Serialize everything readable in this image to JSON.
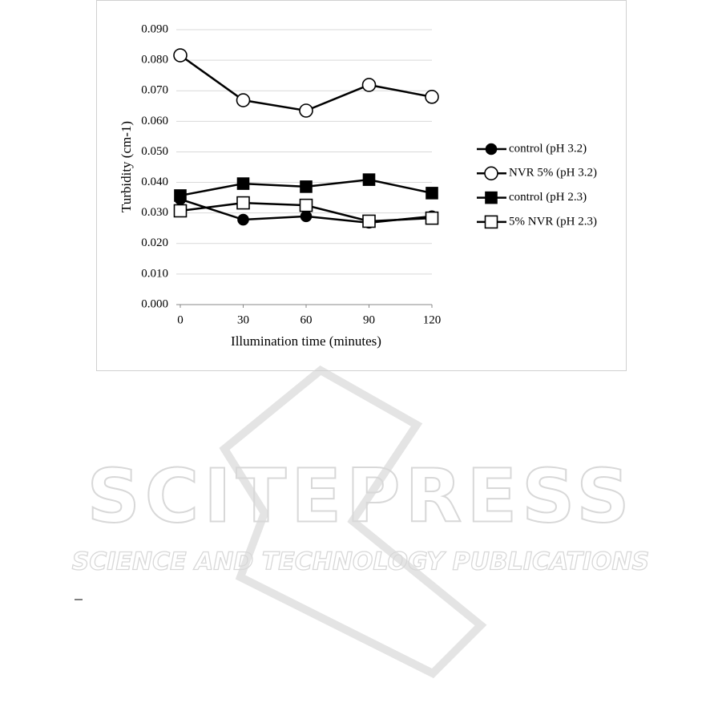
{
  "chart_data": {
    "type": "line",
    "y_label": "Turbidity (cm-1)",
    "x_label": "Illumination time (minutes)",
    "x": [
      0,
      30,
      60,
      90,
      120
    ],
    "xlim": [
      0,
      120
    ],
    "xticks": [
      0,
      30,
      60,
      90,
      120
    ],
    "ylim": [
      0,
      0.09
    ],
    "yticks": [
      {
        "value": 0,
        "label": "0.000"
      },
      {
        "value": 0.01,
        "label": "0.010"
      },
      {
        "value": 0.02,
        "label": "0.020"
      },
      {
        "value": 0.03,
        "label": "0.030"
      },
      {
        "value": 0.04,
        "label": "0.040"
      },
      {
        "value": 0.05,
        "label": "0.050"
      },
      {
        "value": 0.06,
        "label": "0.060"
      },
      {
        "value": 0.07,
        "label": "0.070"
      },
      {
        "value": 0.08,
        "label": "0.080"
      },
      {
        "value": 0.09,
        "label": "0.090"
      }
    ],
    "grid": true,
    "legend": "right",
    "series": [
      {
        "name": "control (pH 3.2)",
        "color": "#000000",
        "marker": "circle",
        "filled": true,
        "values": [
          0.0345,
          0.0278,
          0.0289,
          0.0268,
          0.0289
        ]
      },
      {
        "name": "NVR 5% (pH 3.2)",
        "color": "#000000",
        "marker": "circle",
        "filled": false,
        "values": [
          0.0816,
          0.0669,
          0.0635,
          0.0719,
          0.068
        ]
      },
      {
        "name": "control (pH 2.3)",
        "color": "#000000",
        "marker": "square",
        "filled": true,
        "values": [
          0.0357,
          0.0396,
          0.0386,
          0.0409,
          0.0365
        ]
      },
      {
        "name": "5% NVR (pH 2.3)",
        "color": "#000000",
        "marker": "square",
        "filled": false,
        "values": [
          0.0307,
          0.0333,
          0.0325,
          0.0273,
          0.0283
        ]
      }
    ]
  },
  "watermark": {
    "title": "SCITEPRESS",
    "subtitle": "SCIENCE AND TECHNOLOGY PUBLICATIONS"
  }
}
